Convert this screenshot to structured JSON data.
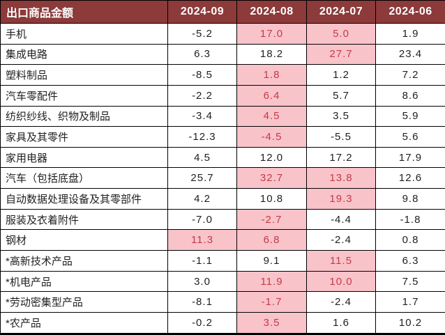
{
  "colors": {
    "header_bg": "#8C3A3A",
    "header_text": "#FFFFFF",
    "highlight_bg": "#F9C3CA",
    "highlight_text": "#C33B47",
    "body_text": "#1F1F1F",
    "border": "#000000",
    "page_bg": "#FFFFFF"
  },
  "chart_data": {
    "type": "table",
    "title": "出口商品金额",
    "columns": [
      "2024-09",
      "2024-08",
      "2024-07",
      "2024-06"
    ],
    "highlight_note": "pink cells mark emphasized values with red text",
    "rows": [
      {
        "label": "手机",
        "values": [
          "-5.2",
          "17.0",
          "5.0",
          "1.9"
        ],
        "highlighted": [
          false,
          true,
          true,
          false
        ]
      },
      {
        "label": "集成电路",
        "values": [
          "6.3",
          "18.2",
          "27.7",
          "23.4"
        ],
        "highlighted": [
          false,
          false,
          true,
          false
        ]
      },
      {
        "label": "塑料制品",
        "values": [
          "-8.5",
          "1.8",
          "1.2",
          "7.2"
        ],
        "highlighted": [
          false,
          true,
          false,
          false
        ]
      },
      {
        "label": "汽车零配件",
        "values": [
          "-2.2",
          "6.4",
          "5.7",
          "8.6"
        ],
        "highlighted": [
          false,
          true,
          false,
          false
        ]
      },
      {
        "label": "纺织纱线、织物及制品",
        "values": [
          "-3.4",
          "4.5",
          "3.5",
          "5.9"
        ],
        "highlighted": [
          false,
          true,
          false,
          false
        ]
      },
      {
        "label": "家具及其零件",
        "values": [
          "-12.3",
          "-4.5",
          "-5.5",
          "5.6"
        ],
        "highlighted": [
          false,
          true,
          false,
          false
        ]
      },
      {
        "label": "家用电器",
        "values": [
          "4.5",
          "12.0",
          "17.2",
          "17.9"
        ],
        "highlighted": [
          false,
          false,
          false,
          false
        ]
      },
      {
        "label": "汽车（包括底盘）",
        "values": [
          "25.7",
          "32.7",
          "13.8",
          "12.6"
        ],
        "highlighted": [
          false,
          true,
          true,
          false
        ]
      },
      {
        "label": "自动数据处理设备及其零部件",
        "values": [
          "4.2",
          "10.8",
          "19.3",
          "9.8"
        ],
        "highlighted": [
          false,
          false,
          true,
          false
        ]
      },
      {
        "label": "服装及衣着附件",
        "values": [
          "-7.0",
          "-2.7",
          "-4.4",
          "-1.8"
        ],
        "highlighted": [
          false,
          true,
          false,
          false
        ]
      },
      {
        "label": "钢材",
        "values": [
          "11.3",
          "6.8",
          "-2.4",
          "0.8"
        ],
        "highlighted": [
          true,
          true,
          false,
          false
        ]
      },
      {
        "label": "*高新技术产品",
        "values": [
          "-1.1",
          "9.1",
          "11.5",
          "6.3"
        ],
        "highlighted": [
          false,
          false,
          true,
          false
        ]
      },
      {
        "label": "*机电产品",
        "values": [
          "3.0",
          "11.9",
          "10.0",
          "7.5"
        ],
        "highlighted": [
          false,
          true,
          true,
          false
        ]
      },
      {
        "label": "*劳动密集型产品",
        "values": [
          "-8.1",
          "-1.7",
          "-2.4",
          "1.7"
        ],
        "highlighted": [
          false,
          true,
          false,
          false
        ]
      },
      {
        "label": "*农产品",
        "values": [
          "-0.2",
          "3.5",
          "1.6",
          "10.2"
        ],
        "highlighted": [
          false,
          true,
          false,
          false
        ]
      }
    ]
  }
}
